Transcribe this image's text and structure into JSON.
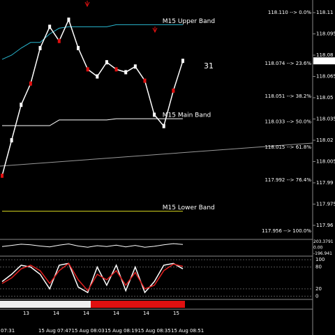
{
  "chart_data": {
    "type": "line",
    "color": "#ffffff",
    "values": [
      117.995,
      118.02,
      118.045,
      118.06,
      118.085,
      118.1,
      118.09,
      118.105,
      118.085,
      118.07,
      118.065,
      118.075,
      118.07,
      118.068,
      118.072,
      118.062,
      118.038,
      118.03,
      118.055,
      118.076
    ],
    "ylim": [
      117.9506,
      118.1189
    ],
    "yticks": [
      118.11,
      118.095,
      118.08,
      118.065,
      118.05,
      118.035,
      118.02,
      118.005,
      117.99,
      117.975,
      117.96
    ],
    "last_price": "118.076",
    "bands": [
      {
        "name": "M15 Upper Band",
        "color": "#29b6cf",
        "values": [
          118.077,
          118.08,
          118.085,
          118.089,
          118.089,
          118.095,
          118.099,
          118.1,
          118.1,
          118.1,
          118.1,
          118.1,
          118.1015,
          118.1015,
          118.1015,
          118.1015,
          118.1015,
          118.1015,
          118.1015,
          118.1015
        ]
      },
      {
        "name": "M15 Main Band",
        "color": "#ffffff",
        "values": [
          118.0303,
          118.0303,
          118.0303,
          118.0303,
          118.0303,
          118.0303,
          118.0343,
          118.0343,
          118.0343,
          118.0343,
          118.0343,
          118.0343,
          118.0352,
          118.0352,
          118.0352,
          118.0352,
          118.0352,
          118.0352,
          118.0352,
          118.0352
        ]
      },
      {
        "name": "M15 Lower Band",
        "color": "#d8d820",
        "values": [
          117.97,
          117.97,
          117.97,
          117.97,
          117.97,
          117.97,
          117.97,
          117.97,
          117.97,
          117.97,
          117.97,
          117.97,
          117.97,
          117.97,
          117.97,
          117.97,
          117.97,
          117.97,
          117.97,
          117.97
        ]
      }
    ],
    "fib_levels": [
      {
        "value": 118.11,
        "label": "118.110 --> 0.0%"
      },
      {
        "value": 118.074,
        "label": "118.074 --> 23.6%"
      },
      {
        "value": 118.051,
        "label": "118.051 --> 38.2%"
      },
      {
        "value": 118.033,
        "label": "118.033 --> 50.0%"
      },
      {
        "value": 118.015,
        "label": "118.015 --> 61.8%"
      },
      {
        "value": 117.992,
        "label": "117.992 --> 76.4%"
      },
      {
        "value": 117.956,
        "label": "117.956 --> 100.0%"
      }
    ],
    "annotation": "31",
    "oscillator": {
      "values": [
        40,
        80,
        120,
        100,
        60,
        30,
        90,
        130,
        60,
        20,
        70,
        40,
        90,
        30,
        80,
        20,
        50,
        100,
        140,
        110
      ],
      "ylim": [
        -260,
        260
      ],
      "yticks": [
        203.3791,
        {
          "value": 0,
          "label": "0.00"
        },
        -196.941
      ]
    },
    "stochastic": {
      "ylim": [
        -7,
        108
      ],
      "yticks": [
        100,
        80,
        20,
        0
      ],
      "series": [
        {
          "color": "#ffffff",
          "values": [
            40,
            60,
            85,
            80,
            60,
            20,
            85,
            90,
            25,
            10,
            80,
            30,
            85,
            15,
            80,
            10,
            40,
            85,
            90,
            75
          ]
        },
        {
          "color": "#e02020",
          "values": [
            35,
            50,
            75,
            85,
            70,
            35,
            70,
            90,
            45,
            15,
            60,
            45,
            70,
            30,
            65,
            20,
            30,
            70,
            88,
            82
          ]
        }
      ]
    },
    "hour_labels": [
      "13",
      "14",
      "14",
      "14",
      "14",
      "15"
    ],
    "time_labels": [
      "07:31",
      "15 Aug 07:47",
      "15 Aug 08:03",
      "15 Aug 08:19",
      "15 Aug 08:35",
      "15 Aug 08:51"
    ]
  }
}
